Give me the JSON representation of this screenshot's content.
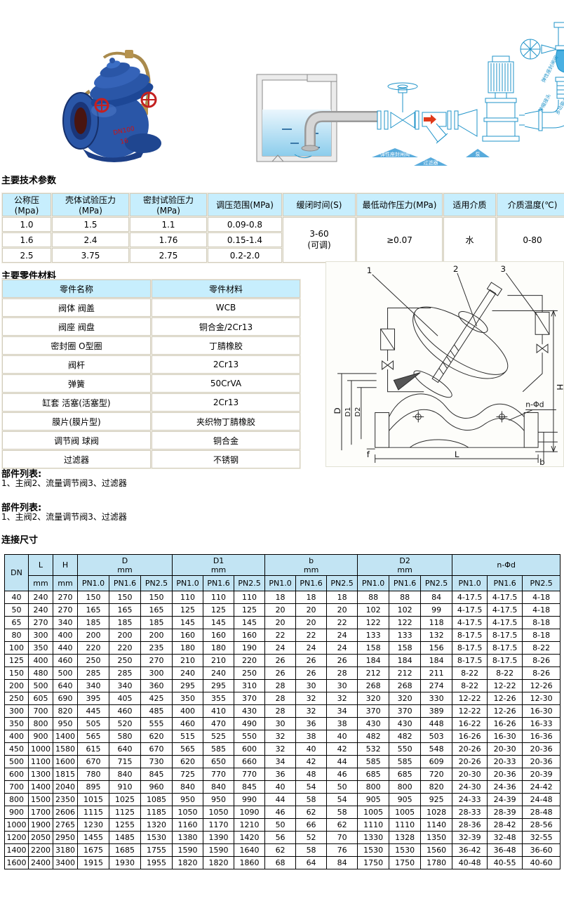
{
  "colors": {
    "table_header_cyan": "#c7eefd",
    "dim_header_blue": "#c2e4f3",
    "grid_border_tan": "#d2cdbd",
    "diagram_blue": "#1f93c9",
    "valve_body_blue": "#2a56a7",
    "handwheel_red": "#c32020",
    "marking_red": "#d01111"
  },
  "headings": {
    "tech_params": "主要技术参数",
    "materials": "主要零件材料",
    "dimensions": "连接尺寸"
  },
  "parts_list_1": {
    "title": "部件列表:",
    "text": "1、主阀2、流量调节阀3、过滤器"
  },
  "parts_list_2": {
    "title": "部件列表:",
    "text": "1、主阀2、流量调节阀3、过滤器"
  },
  "product_photo": {
    "marking_line1": "DN100",
    "marking_line2": "16"
  },
  "installation": {
    "label_gate_valve": "弹性座封闸阀",
    "label_strainer": "过滤器",
    "label_pump": "泵",
    "label_top_right": "弹性座封闸阀",
    "label_control_valve": "多功能水泵控制阀",
    "label_expansion": "伸缩接头"
  },
  "drawing": {
    "callout_1": "1",
    "callout_2": "2",
    "callout_3": "3",
    "dim_h": "H",
    "dim_d": "D",
    "dim_d1": "D1",
    "dim_d2": "D2",
    "dim_f": "f",
    "dim_l": "L",
    "dim_b": "b",
    "dim_n": "n-Φd"
  },
  "tech_table": {
    "headers": [
      "公称压(Mpa)",
      "壳体试验压力 (MPa)",
      "密封试验压力 (MPa)",
      "调压范围(MPa)",
      "缓闭时间(S)",
      "最低动作压力(MPa)",
      "适用介质",
      "介质温度(℃)"
    ],
    "rows": [
      [
        "1.0",
        "1.5",
        "1.1",
        "0.09-0.8"
      ],
      [
        "1.6",
        "2.4",
        "1.76",
        "0.15-1.4"
      ],
      [
        "2.5",
        "3.75",
        "2.75",
        "0.2-2.0"
      ]
    ],
    "merged": {
      "close_time": "3-60\n(可调)",
      "min_action_pressure": "≥0.07",
      "medium": "水",
      "temperature": "0-80"
    }
  },
  "materials_table": {
    "headers": [
      "零件名称",
      "零件材料"
    ],
    "rows": [
      [
        "阀体 阀盖",
        "WCB"
      ],
      [
        "阀座 阀盘",
        "铜合金/2Cr13"
      ],
      [
        "密封圈 O型圈",
        "丁腈橡胶"
      ],
      [
        "阀杆",
        "2Cr13"
      ],
      [
        "弹簧",
        "50CrVA"
      ],
      [
        "缸套 活塞(活塞型)",
        "2Cr13"
      ],
      [
        "膜片(膜片型)",
        "夹织物丁腈橡胶"
      ],
      [
        "调节阀 球阀",
        "铜合金"
      ],
      [
        "过滤器",
        "不锈钢"
      ]
    ]
  },
  "dim_table": {
    "groups": {
      "dn": "DN",
      "l": "L",
      "h": "H",
      "d": "D",
      "d1": "D1",
      "b": "b",
      "d2": "D2",
      "n": "n-Φd"
    },
    "unit": "mm",
    "pn": [
      "PN1.0",
      "PN1.6",
      "PN2.5"
    ],
    "rows": [
      [
        "40",
        "240",
        "270",
        "150",
        "150",
        "150",
        "110",
        "110",
        "110",
        "18",
        "18",
        "18",
        "88",
        "88",
        "84",
        "4-17.5",
        "4-17.5",
        "4-18"
      ],
      [
        "50",
        "240",
        "270",
        "165",
        "165",
        "165",
        "125",
        "125",
        "125",
        "20",
        "20",
        "20",
        "102",
        "102",
        "99",
        "4-17.5",
        "4-17.5",
        "4-18"
      ],
      [
        "65",
        "270",
        "340",
        "185",
        "185",
        "185",
        "145",
        "145",
        "145",
        "20",
        "20",
        "22",
        "122",
        "122",
        "118",
        "4-17.5",
        "4-17.5",
        "8-18"
      ],
      [
        "80",
        "300",
        "400",
        "200",
        "200",
        "200",
        "160",
        "160",
        "160",
        "22",
        "22",
        "24",
        "133",
        "133",
        "132",
        "8-17.5",
        "8-17.5",
        "8-18"
      ],
      [
        "100",
        "350",
        "440",
        "220",
        "220",
        "235",
        "180",
        "180",
        "190",
        "24",
        "24",
        "24",
        "158",
        "158",
        "156",
        "8-17.5",
        "8-17.5",
        "8-22"
      ],
      [
        "125",
        "400",
        "460",
        "250",
        "250",
        "270",
        "210",
        "210",
        "220",
        "26",
        "26",
        "26",
        "184",
        "184",
        "184",
        "8-17.5",
        "8-17.5",
        "8-26"
      ],
      [
        "150",
        "480",
        "500",
        "285",
        "285",
        "300",
        "240",
        "240",
        "250",
        "26",
        "26",
        "28",
        "212",
        "212",
        "211",
        "8-22",
        "8-22",
        "8-26"
      ],
      [
        "200",
        "500",
        "640",
        "340",
        "340",
        "360",
        "295",
        "295",
        "310",
        "28",
        "30",
        "30",
        "268",
        "268",
        "274",
        "8-22",
        "12-22",
        "12-26"
      ],
      [
        "250",
        "605",
        "690",
        "395",
        "405",
        "425",
        "350",
        "355",
        "370",
        "28",
        "32",
        "32",
        "320",
        "320",
        "330",
        "12-22",
        "12-26",
        "12-30"
      ],
      [
        "300",
        "700",
        "820",
        "445",
        "460",
        "485",
        "400",
        "410",
        "430",
        "28",
        "32",
        "34",
        "370",
        "370",
        "389",
        "12-22",
        "12-26",
        "16-30"
      ],
      [
        "350",
        "800",
        "950",
        "505",
        "520",
        "555",
        "460",
        "470",
        "490",
        "30",
        "36",
        "38",
        "430",
        "430",
        "448",
        "16-22",
        "16-26",
        "16-33"
      ],
      [
        "400",
        "900",
        "1400",
        "565",
        "580",
        "620",
        "515",
        "525",
        "550",
        "32",
        "38",
        "40",
        "482",
        "482",
        "503",
        "16-26",
        "16-30",
        "16-36"
      ],
      [
        "450",
        "1000",
        "1580",
        "615",
        "640",
        "670",
        "565",
        "585",
        "600",
        "32",
        "40",
        "42",
        "532",
        "550",
        "548",
        "20-26",
        "20-30",
        "20-36"
      ],
      [
        "500",
        "1100",
        "1600",
        "670",
        "715",
        "730",
        "620",
        "650",
        "660",
        "34",
        "42",
        "44",
        "585",
        "585",
        "609",
        "20-26",
        "20-33",
        "20-36"
      ],
      [
        "600",
        "1300",
        "1815",
        "780",
        "840",
        "845",
        "725",
        "770",
        "770",
        "36",
        "48",
        "46",
        "685",
        "685",
        "720",
        "20-30",
        "20-36",
        "20-39"
      ],
      [
        "700",
        "1400",
        "2040",
        "895",
        "910",
        "960",
        "840",
        "840",
        "845",
        "40",
        "54",
        "50",
        "800",
        "800",
        "820",
        "24-30",
        "24-36",
        "24-42"
      ],
      [
        "800",
        "1500",
        "2350",
        "1015",
        "1025",
        "1085",
        "950",
        "950",
        "990",
        "44",
        "58",
        "54",
        "905",
        "905",
        "925",
        "24-33",
        "24-39",
        "24-48"
      ],
      [
        "900",
        "1700",
        "2606",
        "1115",
        "1125",
        "1185",
        "1050",
        "1050",
        "1090",
        "46",
        "62",
        "58",
        "1005",
        "1005",
        "1028",
        "28-33",
        "28-39",
        "28-48"
      ],
      [
        "1000",
        "1900",
        "2765",
        "1230",
        "1255",
        "1320",
        "1160",
        "1170",
        "1210",
        "50",
        "66",
        "62",
        "1110",
        "1110",
        "1140",
        "28-36",
        "28-42",
        "28-56"
      ],
      [
        "1200",
        "2050",
        "2950",
        "1455",
        "1485",
        "1530",
        "1380",
        "1390",
        "1420",
        "56",
        "52",
        "70",
        "1330",
        "1328",
        "1350",
        "32-39",
        "32-48",
        "32-55"
      ],
      [
        "1400",
        "2200",
        "3180",
        "1675",
        "1685",
        "1755",
        "1590",
        "1590",
        "1640",
        "62",
        "58",
        "76",
        "1530",
        "1530",
        "1560",
        "36-42",
        "36-48",
        "36-60"
      ],
      [
        "1600",
        "2400",
        "3400",
        "1915",
        "1930",
        "1955",
        "1820",
        "1820",
        "1860",
        "68",
        "64",
        "84",
        "1750",
        "1750",
        "1780",
        "40-48",
        "40-55",
        "40-60"
      ]
    ]
  }
}
